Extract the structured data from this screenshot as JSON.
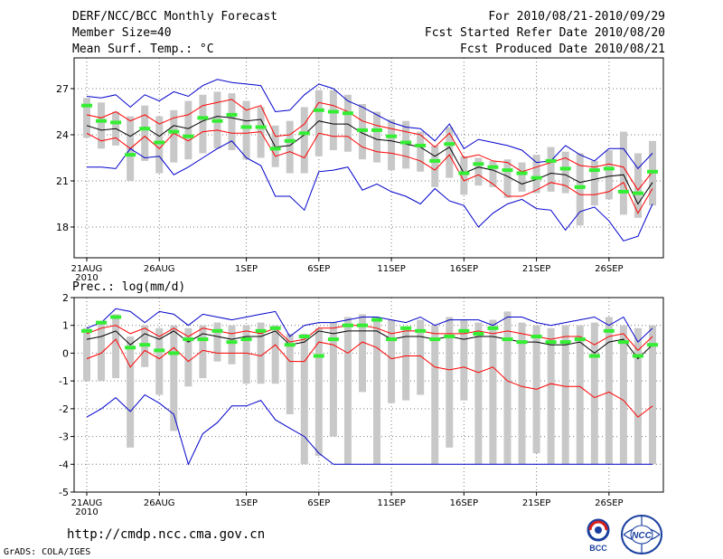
{
  "header": {
    "title": "DERF/NCC/BCC Monthly Forecast",
    "member_size": "Member Size=40",
    "variable": "Mean Surf. Temp.: °C",
    "for_range": "For 2010/08/21-2010/09/29",
    "started": "Fcst Started Refer Date 2010/08/20",
    "produced": "Fcst Produced Date 2010/08/21"
  },
  "footer": {
    "url": "http://cmdp.ncc.cma.gov.cn",
    "credit": "GrADS: COLA/IGES"
  },
  "logos": {
    "bcc": "BCC",
    "ncc": "NCC"
  },
  "colors": {
    "ensemble_mean": "#000000",
    "spread": "#ff0000",
    "extreme": "#0000cc",
    "box": "#c8c8c8",
    "climatology": "#33ee33",
    "grid": "#777777"
  },
  "chart_data": [
    {
      "type": "line",
      "title": "Mean Surf. Temp.: °C",
      "xlabel": "",
      "ylabel": "°C",
      "ylim": [
        16,
        29
      ],
      "yticks": [
        18,
        21,
        24,
        27
      ],
      "xticks": [
        {
          "day": 0,
          "label": "21AUG",
          "sub": "2010"
        },
        {
          "day": 5,
          "label": "26AUG"
        },
        {
          "day": 11,
          "label": "1SEP"
        },
        {
          "day": 16,
          "label": "6SEP"
        },
        {
          "day": 21,
          "label": "11SEP"
        },
        {
          "day": 26,
          "label": "16SEP"
        },
        {
          "day": 31,
          "label": "21SEP"
        },
        {
          "day": 36,
          "label": "26SEP"
        }
      ],
      "days": 40,
      "series": [
        {
          "name": "upper extreme",
          "role": "max",
          "values": [
            26.5,
            26.4,
            26.6,
            25.8,
            26.6,
            26.2,
            26.8,
            26.5,
            27.2,
            27.6,
            27.4,
            27.3,
            27.2,
            25.5,
            25.6,
            26.6,
            27.3,
            27.0,
            26.2,
            25.8,
            25.3,
            24.8,
            24.5,
            24.4,
            23.6,
            24.7,
            23.1,
            23.7,
            23.5,
            23.3,
            23.0,
            22.2,
            22.3,
            23.3,
            22.7,
            22.3,
            23.1,
            23.1,
            21.8,
            22.8
          ]
        },
        {
          "name": "upper spread",
          "role": "spread",
          "values": [
            25.3,
            25.1,
            25.5,
            24.9,
            25.3,
            24.7,
            25.1,
            25.3,
            25.9,
            26.1,
            26.3,
            25.6,
            25.9,
            23.9,
            24.0,
            24.7,
            26.1,
            25.9,
            25.5,
            24.9,
            24.6,
            24.4,
            24.2,
            24.0,
            23.2,
            24.1,
            22.5,
            22.7,
            22.3,
            22.2,
            21.6,
            21.9,
            22.2,
            22.5,
            22.0,
            21.9,
            22.1,
            21.9,
            20.4,
            21.6
          ]
        },
        {
          "name": "ensemble mean",
          "role": "mean",
          "values": [
            24.6,
            24.3,
            24.4,
            23.9,
            24.5,
            23.9,
            24.6,
            24.4,
            24.9,
            25.2,
            25.1,
            24.9,
            25.0,
            23.2,
            23.3,
            24.0,
            24.9,
            24.7,
            24.7,
            24.1,
            23.7,
            23.6,
            23.4,
            23.2,
            22.6,
            23.2,
            21.5,
            21.9,
            21.7,
            21.3,
            20.8,
            21.1,
            21.5,
            21.4,
            20.9,
            21.1,
            21.3,
            21.4,
            19.5,
            20.9
          ]
        },
        {
          "name": "lower spread",
          "role": "spread",
          "values": [
            24.1,
            23.6,
            23.8,
            23.1,
            23.9,
            23.1,
            24.1,
            23.6,
            24.2,
            24.3,
            24.1,
            24.1,
            24.2,
            22.6,
            22.9,
            22.5,
            24.1,
            23.9,
            23.9,
            23.2,
            22.9,
            22.8,
            22.6,
            22.3,
            21.7,
            22.7,
            21.0,
            21.4,
            20.8,
            20.0,
            20.0,
            20.4,
            20.9,
            20.7,
            20.1,
            20.1,
            20.3,
            20.9,
            18.9,
            20.5
          ]
        },
        {
          "name": "lower extreme",
          "role": "min",
          "values": [
            21.9,
            21.9,
            21.8,
            23.1,
            22.5,
            22.6,
            21.4,
            21.9,
            22.5,
            23.1,
            23.6,
            22.5,
            22.0,
            20.0,
            20.0,
            19.1,
            21.6,
            21.7,
            21.9,
            20.4,
            20.8,
            20.3,
            20.0,
            19.5,
            20.5,
            19.7,
            19.4,
            18.0,
            18.9,
            19.5,
            19.8,
            19.2,
            19.1,
            17.8,
            19.0,
            19.3,
            18.4,
            17.1,
            17.4,
            19.5
          ]
        }
      ],
      "boxes": {
        "low": [
          23.8,
          23.1,
          23.3,
          21.0,
          22.3,
          21.5,
          22.2,
          22.4,
          22.8,
          23.1,
          23.0,
          22.4,
          22.5,
          21.9,
          21.5,
          21.5,
          22.6,
          23.0,
          22.9,
          22.4,
          22.2,
          21.7,
          21.8,
          21.6,
          20.6,
          21.2,
          20.1,
          20.7,
          20.6,
          19.9,
          20.3,
          20.2,
          20.3,
          20.2,
          18.1,
          19.4,
          19.8,
          18.8,
          18.6,
          19.4
        ],
        "high": [
          26.4,
          26.1,
          25.5,
          25.2,
          25.9,
          25.2,
          25.6,
          26.2,
          26.6,
          26.8,
          26.7,
          26.2,
          25.8,
          24.6,
          24.9,
          25.8,
          26.9,
          26.9,
          26.6,
          26.0,
          25.5,
          25.0,
          24.9,
          24.2,
          23.3,
          24.5,
          22.6,
          22.5,
          22.3,
          22.4,
          22.2,
          22.7,
          23.2,
          22.9,
          22.8,
          22.3,
          23.0,
          24.2,
          22.8,
          23.6
        ]
      },
      "climatology": [
        25.9,
        24.9,
        24.8,
        22.7,
        24.4,
        23.5,
        24.2,
        23.9,
        25.1,
        24.9,
        25.3,
        24.5,
        24.5,
        23.1,
        23.6,
        24.1,
        25.6,
        25.5,
        25.4,
        24.3,
        24.3,
        23.9,
        23.5,
        23.3,
        22.3,
        23.4,
        21.5,
        22.1,
        21.9,
        21.7,
        21.5,
        21.2,
        22.3,
        21.8,
        20.6,
        21.7,
        21.8,
        20.3,
        20.2,
        21.6
      ]
    },
    {
      "type": "line",
      "title": "Prec.: log(mm/d)",
      "xlabel": "",
      "ylabel": "log(mm/d)",
      "ylim": [
        -5,
        2
      ],
      "yticks": [
        -5,
        -4,
        -3,
        -2,
        -1,
        0,
        1,
        2
      ],
      "xticks": [
        {
          "day": 0,
          "label": "21AUG",
          "sub": "2010"
        },
        {
          "day": 5,
          "label": "26AUG"
        },
        {
          "day": 11,
          "label": "1SEP"
        },
        {
          "day": 16,
          "label": "6SEP"
        },
        {
          "day": 21,
          "label": "11SEP"
        },
        {
          "day": 26,
          "label": "16SEP"
        },
        {
          "day": 31,
          "label": "21SEP"
        },
        {
          "day": 36,
          "label": "26SEP"
        }
      ],
      "days": 40,
      "series": [
        {
          "name": "upper extreme",
          "role": "max",
          "values": [
            0.9,
            1.1,
            1.6,
            1.5,
            1.1,
            1.5,
            1.4,
            1.0,
            1.4,
            1.3,
            1.2,
            1.3,
            1.4,
            1.5,
            0.6,
            1.0,
            1.1,
            1.1,
            1.2,
            1.3,
            1.3,
            1.2,
            1.1,
            1.3,
            1.0,
            1.2,
            1.2,
            1.2,
            1.0,
            1.3,
            1.3,
            1.1,
            1.0,
            1.1,
            1.2,
            1.3,
            1.0,
            1.3,
            0.4,
            0.9
          ]
        },
        {
          "name": "upper spread",
          "role": "spread",
          "values": [
            0.7,
            0.9,
            1.0,
            0.7,
            0.9,
            0.6,
            0.9,
            0.6,
            0.9,
            0.8,
            0.7,
            0.8,
            0.7,
            0.9,
            0.4,
            0.5,
            0.9,
            0.9,
            1.0,
            1.0,
            0.9,
            0.7,
            0.8,
            0.8,
            0.7,
            0.7,
            0.7,
            0.8,
            0.7,
            0.8,
            0.7,
            0.6,
            0.5,
            0.6,
            0.6,
            0.3,
            0.6,
            0.7,
            0.1,
            0.6
          ]
        },
        {
          "name": "ensemble mean",
          "role": "mean",
          "values": [
            0.5,
            0.6,
            0.8,
            0.3,
            0.7,
            0.5,
            0.8,
            0.4,
            0.7,
            0.6,
            0.5,
            0.6,
            0.6,
            0.8,
            0.3,
            0.4,
            0.8,
            0.7,
            0.8,
            0.8,
            0.8,
            0.5,
            0.6,
            0.6,
            0.5,
            0.6,
            0.5,
            0.6,
            0.6,
            0.5,
            0.4,
            0.4,
            0.3,
            0.3,
            0.4,
            0.0,
            0.4,
            0.5,
            -0.2,
            0.3
          ]
        },
        {
          "name": "lower spread",
          "role": "spread",
          "values": [
            -0.2,
            0.0,
            0.5,
            -0.5,
            0.1,
            -0.2,
            0.2,
            -0.3,
            0.1,
            0.0,
            0.0,
            0.0,
            -0.1,
            0.3,
            -0.3,
            -0.3,
            0.4,
            0.3,
            0.0,
            0.4,
            0.2,
            -0.2,
            -0.1,
            -0.1,
            -0.5,
            -0.6,
            -0.5,
            -0.7,
            -0.5,
            -1.0,
            -1.2,
            -1.3,
            -1.1,
            -1.2,
            -1.2,
            -1.6,
            -1.4,
            -1.7,
            -2.3,
            -1.9
          ]
        },
        {
          "name": "lower extreme",
          "role": "min",
          "values": [
            -2.3,
            -2.0,
            -1.6,
            -2.1,
            -1.5,
            -1.8,
            -2.2,
            -4.0,
            -2.9,
            -2.5,
            -1.9,
            -1.9,
            -1.7,
            -2.4,
            -2.7,
            -3.0,
            -3.6,
            -4.0,
            -4.0,
            -4.0,
            -4.0,
            -4.0,
            -4.0,
            -4.0,
            -4.0,
            -4.0,
            -4.0,
            -4.0,
            -4.0,
            -4.0,
            -4.0,
            -4.0,
            -4.0,
            -4.0,
            -4.0,
            -4.0,
            -4.0,
            -4.0,
            -4.0,
            -4.0
          ]
        }
      ],
      "boxes": {
        "low": [
          -1.0,
          -1.0,
          -0.9,
          -3.4,
          -0.5,
          -1.5,
          -2.8,
          -1.2,
          -0.9,
          -0.3,
          -0.4,
          -1.1,
          -1.1,
          -1.1,
          -2.2,
          -4.0,
          -3.7,
          -3.0,
          -4.0,
          -1.4,
          -4.0,
          -1.8,
          -1.7,
          -1.5,
          -4.0,
          -3.4,
          -1.7,
          -4.0,
          -4.0,
          -4.0,
          -4.0,
          -3.6,
          -4.0,
          -4.0,
          -4.0,
          -4.0,
          -4.0,
          -4.0,
          -4.0,
          -4.0
        ],
        "high": [
          0.9,
          1.1,
          1.4,
          0.6,
          1.0,
          0.9,
          1.0,
          0.9,
          1.0,
          1.1,
          1.0,
          1.0,
          1.1,
          1.0,
          0.7,
          0.7,
          0.9,
          1.1,
          1.3,
          1.4,
          1.3,
          1.2,
          0.9,
          1.2,
          1.0,
          1.3,
          1.2,
          1.1,
          1.2,
          1.5,
          1.1,
          1.0,
          0.9,
          1.0,
          1.0,
          1.1,
          1.3,
          1.0,
          0.9,
          1.0
        ]
      },
      "climatology": [
        0.8,
        1.1,
        1.3,
        0.2,
        0.3,
        0.1,
        0.0,
        0.5,
        0.5,
        0.8,
        0.4,
        0.5,
        0.8,
        0.9,
        0.3,
        0.6,
        -0.1,
        0.5,
        1.0,
        1.0,
        1.2,
        0.5,
        0.9,
        0.8,
        0.5,
        0.6,
        0.8,
        0.7,
        0.9,
        0.5,
        0.4,
        0.6,
        0.4,
        0.4,
        0.5,
        -0.1,
        0.8,
        0.4,
        -0.1,
        0.3
      ]
    }
  ]
}
